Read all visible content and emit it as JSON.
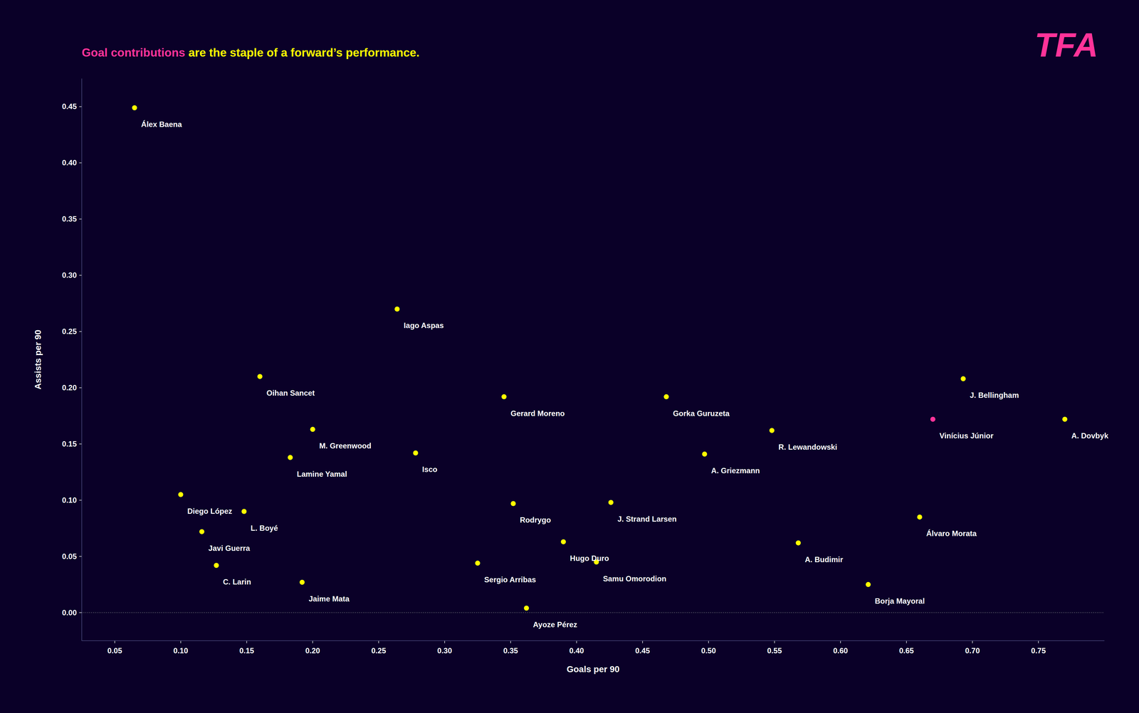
{
  "chart_data": {
    "type": "scatter",
    "title": [
      {
        "text": "Goal contributions",
        "color": "#ff3399"
      },
      {
        "text": " are the staple of a forward’s performance.",
        "color": "#ffff00"
      }
    ],
    "x_label": "Goals per 90",
    "y_label": "Assists per 90",
    "annotations": [
      {
        "text": "TFA",
        "color": "#ff3399"
      },
      {
        "type": "hline",
        "y": 0,
        "line_style": "dotted"
      }
    ],
    "point_labels": [
      "Álex Baena",
      "Oihan Sancet",
      "M. Greenwood",
      "Lamine Yamal",
      "Diego López",
      "L. Boyé",
      "Javi Guerra",
      "C. Larin",
      "Jaime Mata",
      "Iago Aspas",
      "Isco",
      "Sergio Arribas",
      "Ayoze Pérez",
      "Rodrygo",
      "Gerard Moreno",
      "J. Strand Larsen",
      "Hugo Duro",
      "Samu Omorodion",
      "Gorka Guruzeta",
      "A. Griezmann",
      "A. Budimir",
      "R. Lewandowski",
      "Borja Mayoral",
      "Álvaro Morata",
      "J. Bellingham",
      "Vinícius Júnior",
      "A. Dovbyk"
    ],
    "x": [
      0.065,
      0.16,
      0.2,
      0.183,
      0.1,
      0.148,
      0.116,
      0.127,
      0.192,
      0.264,
      0.278,
      0.325,
      0.362,
      0.352,
      0.345,
      0.426,
      0.39,
      0.415,
      0.468,
      0.497,
      0.568,
      0.548,
      0.621,
      0.66,
      0.693,
      0.67,
      0.77
    ],
    "values": [
      0.449,
      0.21,
      0.163,
      0.138,
      0.105,
      0.09,
      0.072,
      0.042,
      0.027,
      0.27,
      0.142,
      0.044,
      0.004,
      0.097,
      0.192,
      0.098,
      0.063,
      0.045,
      0.192,
      0.141,
      0.062,
      0.162,
      0.025,
      0.085,
      0.208,
      0.172,
      0.172
    ],
    "colors": [
      "#ffff00",
      "#ffff00",
      "#ffff00",
      "#ffff00",
      "#ffff00",
      "#ffff00",
      "#ffff00",
      "#ffff00",
      "#ffff00",
      "#ffff00",
      "#ffff00",
      "#ffff00",
      "#ffff00",
      "#ffff00",
      "#ffff00",
      "#ffff00",
      "#ffff00",
      "#ffff00",
      "#ffff00",
      "#ffff00",
      "#ffff00",
      "#ffff00",
      "#ffff00",
      "#ffff00",
      "#ffff00",
      "#ff3399",
      "#ffff00"
    ],
    "marker": "circle",
    "xlim": [
      0.025,
      0.8
    ],
    "ylim": [
      -0.025,
      0.475
    ],
    "xticks": [
      0.05,
      {
        "value": 0.1,
        "label": "0.10"
      },
      0.15,
      {
        "value": 0.2,
        "label": "0.20"
      },
      0.25,
      {
        "value": 0.3,
        "label": "0.30"
      },
      0.35,
      {
        "value": 0.4,
        "label": "0.40"
      },
      0.45,
      {
        "value": 0.5,
        "label": "0.50"
      },
      0.55,
      {
        "value": 0.6,
        "label": "0.60"
      },
      0.65,
      {
        "value": 0.7,
        "label": "0.70"
      },
      0.75
    ],
    "yticks": [
      {
        "value": 0,
        "label": "0.00"
      },
      0.05,
      {
        "value": 0.1,
        "label": "0.10"
      },
      0.15,
      {
        "value": 0.2,
        "label": "0.20"
      },
      0.25,
      {
        "value": 0.3,
        "label": "0.30"
      },
      0.35,
      {
        "value": 0.4,
        "label": "0.40"
      },
      0.45
    ],
    "grid": false
  }
}
